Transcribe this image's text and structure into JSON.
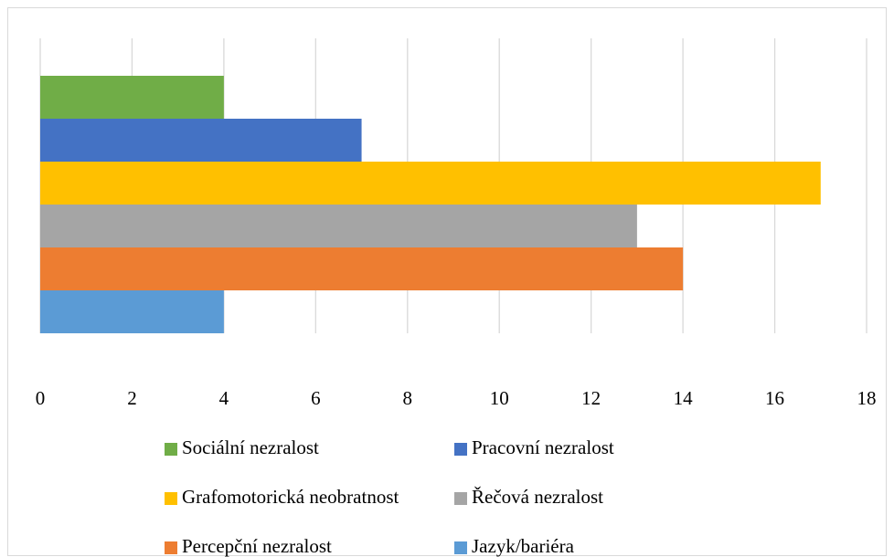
{
  "chart_data": {
    "type": "bar",
    "orientation": "horizontal",
    "series": [
      {
        "name": "Sociální nezralost",
        "color": "#70ad47",
        "values": [
          4
        ]
      },
      {
        "name": "Pracovní nezralost",
        "color": "#4472c4",
        "values": [
          7
        ]
      },
      {
        "name": "Grafomotorická neobratnost",
        "color": "#ffc000",
        "values": [
          17
        ]
      },
      {
        "name": "Řečová nezralost",
        "color": "#a5a5a5",
        "values": [
          13
        ]
      },
      {
        "name": "Percepční nezralost",
        "color": "#ed7d31",
        "values": [
          14
        ]
      },
      {
        "name": "Jazyk/bariéra",
        "color": "#5b9bd5",
        "values": [
          4
        ]
      }
    ],
    "xlim": [
      0,
      18
    ],
    "xticks": [
      0,
      2,
      4,
      6,
      8,
      10,
      12,
      14,
      16,
      18
    ],
    "grid": true
  }
}
